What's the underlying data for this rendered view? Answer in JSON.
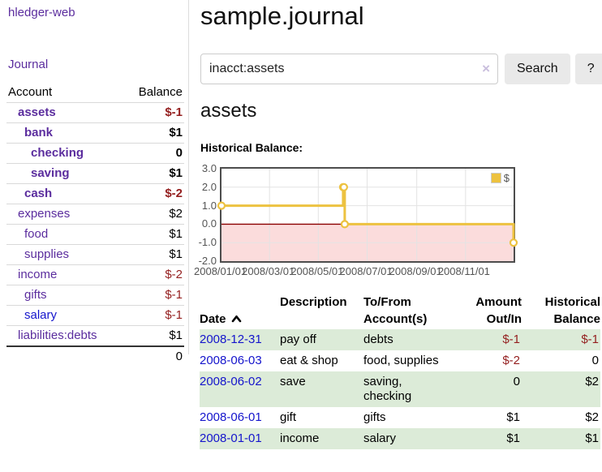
{
  "app": {
    "brand": "hledger-web"
  },
  "nav": {
    "journal": "Journal"
  },
  "sidebar": {
    "header": {
      "account": "Account",
      "balance": "Balance"
    },
    "accounts": [
      {
        "name": "assets",
        "indent": 0,
        "bold": true,
        "balance": "$-1",
        "negative": true,
        "link": "purple"
      },
      {
        "name": "bank",
        "indent": 1,
        "bold": true,
        "balance": "$1",
        "negative": false,
        "link": "purple"
      },
      {
        "name": "checking",
        "indent": 2,
        "bold": true,
        "balance": "0",
        "negative": false,
        "link": "purple"
      },
      {
        "name": "saving",
        "indent": 2,
        "bold": true,
        "balance": "$1",
        "negative": false,
        "link": "purple"
      },
      {
        "name": "cash",
        "indent": 1,
        "bold": true,
        "balance": "$-2",
        "negative": true,
        "link": "purple"
      },
      {
        "name": "expenses",
        "indent": 0,
        "bold": false,
        "balance": "$2",
        "negative": false,
        "link": "purple"
      },
      {
        "name": "food",
        "indent": 1,
        "bold": false,
        "balance": "$1",
        "negative": false,
        "link": "purple"
      },
      {
        "name": "supplies",
        "indent": 1,
        "bold": false,
        "balance": "$1",
        "negative": false,
        "link": "purple"
      },
      {
        "name": "income",
        "indent": 0,
        "bold": false,
        "balance": "$-2",
        "negative": true,
        "link": "purple"
      },
      {
        "name": "gifts",
        "indent": 1,
        "bold": false,
        "balance": "$-1",
        "negative": true,
        "link": "purple"
      },
      {
        "name": "salary",
        "indent": 1,
        "bold": false,
        "balance": "$-1",
        "negative": true,
        "link": "blue"
      },
      {
        "name": "liabilities:debts",
        "indent": 0,
        "bold": false,
        "balance": "$1",
        "negative": false,
        "link": "purple"
      }
    ],
    "total": "0"
  },
  "header": {
    "title": "sample.journal"
  },
  "search": {
    "value": "inacct:assets",
    "clear_icon": "×",
    "button_label": "Search",
    "help_label": "?"
  },
  "account_page": {
    "heading": "assets",
    "chart_label": "Historical Balance:"
  },
  "chart_data": {
    "type": "line",
    "title": "Historical Balance",
    "step": true,
    "series": [
      {
        "name": "$",
        "color": "#edc240"
      }
    ],
    "points": [
      {
        "date": "2008-01-01",
        "day": 0,
        "value": 1
      },
      {
        "date": "2008-06-01",
        "day": 152,
        "value": 2
      },
      {
        "date": "2008-06-02",
        "day": 153,
        "value": 2
      },
      {
        "date": "2008-06-03",
        "day": 154,
        "value": 0
      },
      {
        "date": "2008-12-31",
        "day": 365,
        "value": -1
      }
    ],
    "xlim_days": [
      0,
      365
    ],
    "ylim": [
      -2,
      3
    ],
    "y_ticks": [
      3.0,
      2.0,
      1.0,
      0.0,
      -1.0,
      -2.0
    ],
    "y_tick_labels": [
      "3.0",
      "2.0",
      "1.0",
      "0.0",
      "-1.0",
      "-2.0"
    ],
    "x_tick_days": [
      0,
      60,
      121,
      182,
      244,
      305
    ],
    "x_tick_labels": [
      "2008/01/01",
      "2008/03/01",
      "2008/05/01",
      "2008/07/01",
      "2008/09/01",
      "2008/11/01"
    ],
    "grid": true,
    "legend_position": "top-right",
    "legend": {
      "label": "$",
      "swatch_color": "#edc240"
    },
    "negative_region_color": "#fbdcdc",
    "zero_line_color": "#8b0000",
    "grid_color": "#e3e3e3",
    "border_color": "#4d4d4d"
  },
  "register": {
    "columns": [
      {
        "label": "Date",
        "sorted": "ascending"
      },
      {
        "label": "Description"
      },
      {
        "label": "To/From\nAccount(s)"
      },
      {
        "label": "Amount\nOut/In"
      },
      {
        "label": "Historical\nBalance"
      }
    ],
    "rows": [
      {
        "date": "2008-12-31",
        "description": "pay off",
        "accounts": "debts",
        "amount": "$-1",
        "balance": "$-1"
      },
      {
        "date": "2008-06-03",
        "description": "eat & shop",
        "accounts": "food, supplies",
        "amount": "$-2",
        "balance": "0"
      },
      {
        "date": "2008-06-02",
        "description": "save",
        "accounts": "saving,\nchecking",
        "amount": "0",
        "balance": "$2"
      },
      {
        "date": "2008-06-01",
        "description": "gift",
        "accounts": "gifts",
        "amount": "$1",
        "balance": "$2"
      },
      {
        "date": "2008-01-01",
        "description": "income",
        "accounts": "salary",
        "amount": "$1",
        "balance": "$1"
      }
    ]
  },
  "colors": {
    "link_purple": "#5b2d9e",
    "link_blue": "#1414cc",
    "negative_red": "#941f1f",
    "row_green": "#dcebd8",
    "series_gold": "#edc240"
  }
}
